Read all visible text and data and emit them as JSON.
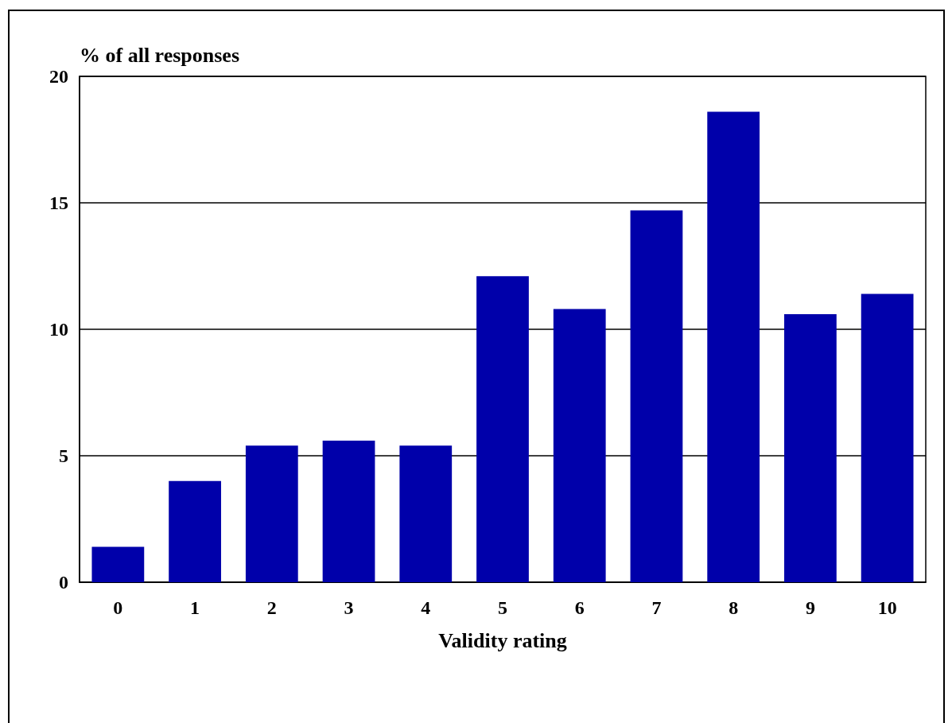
{
  "chart_data": {
    "type": "bar",
    "xlabel": "Validity rating",
    "ylabel": "% of all responses",
    "categories": [
      "0",
      "1",
      "2",
      "3",
      "4",
      "5",
      "6",
      "7",
      "8",
      "9",
      "10"
    ],
    "values": [
      1.4,
      4.0,
      5.4,
      5.6,
      5.4,
      12.1,
      10.8,
      14.7,
      18.6,
      10.6,
      11.4
    ],
    "color": "#0000aa",
    "ylim": [
      0,
      20
    ],
    "yticks": [
      0,
      5,
      10,
      15,
      20
    ],
    "grid": "y"
  }
}
